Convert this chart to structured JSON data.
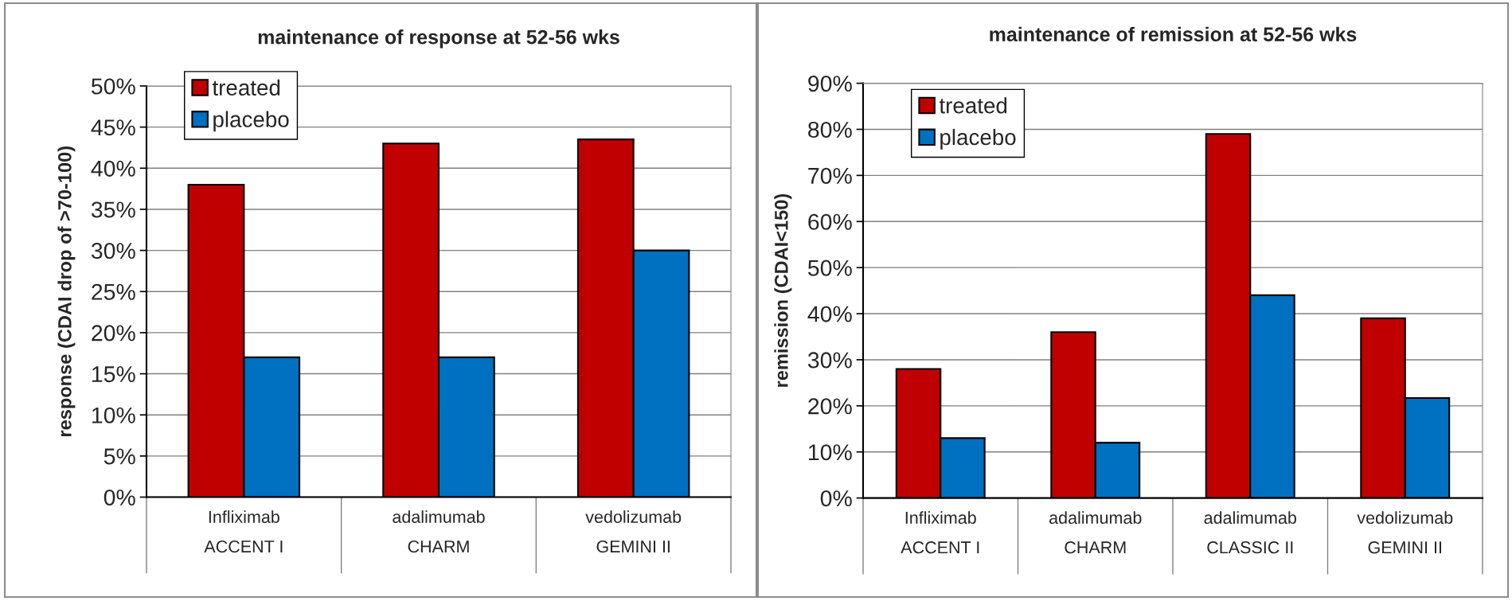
{
  "chart_data": [
    {
      "type": "bar",
      "title": "maintenance of response at 52-56 wks",
      "ylabel": "response (CDAI drop of >70-100)",
      "categories": [
        "Infliximab\nACCENT I",
        "adalimumab\nCHARM",
        "vedolizumab\nGEMINI II"
      ],
      "series": [
        {
          "name": "treated",
          "color": "#c00000",
          "values": [
            38,
            43,
            43.5
          ]
        },
        {
          "name": "placebo",
          "color": "#0070c0",
          "values": [
            17,
            17,
            30
          ]
        }
      ],
      "ylim": [
        0,
        50
      ],
      "yticks": [
        {
          "value": 0,
          "label": "0%"
        },
        {
          "value": 5,
          "label": "5%"
        },
        {
          "value": 10,
          "label": "10%"
        },
        {
          "value": 15,
          "label": "15%"
        },
        {
          "value": 20,
          "label": "20%"
        },
        {
          "value": 25,
          "label": "25%"
        },
        {
          "value": 30,
          "label": "30%"
        },
        {
          "value": 35,
          "label": "35%"
        },
        {
          "value": 40,
          "label": "40%"
        },
        {
          "value": 45,
          "label": "45%"
        },
        {
          "value": 50,
          "label": "50%"
        }
      ],
      "grid": "y",
      "legend": "top left"
    },
    {
      "type": "bar",
      "title": "maintenance of remission at 52-56 wks",
      "ylabel": "remission (CDAI<150)",
      "categories": [
        "Infliximab\nACCENT I",
        "adalimumab\nCHARM",
        "adalimumab\nCLASSIC II",
        "vedolizumab\nGEMINI II"
      ],
      "series": [
        {
          "name": "treated",
          "color": "#c00000",
          "values": [
            28,
            36,
            79,
            39
          ]
        },
        {
          "name": "placebo",
          "color": "#0070c0",
          "values": [
            13,
            12,
            44,
            21.7
          ]
        }
      ],
      "ylim": [
        0,
        90
      ],
      "yticks": [
        {
          "value": 0,
          "label": "0%"
        },
        {
          "value": 10,
          "label": "10%"
        },
        {
          "value": 20,
          "label": "20%"
        },
        {
          "value": 30,
          "label": "30%"
        },
        {
          "value": 40,
          "label": "40%"
        },
        {
          "value": 50,
          "label": "50%"
        },
        {
          "value": 60,
          "label": "60%"
        },
        {
          "value": 70,
          "label": "70%"
        },
        {
          "value": 80,
          "label": "80%"
        },
        {
          "value": 90,
          "label": "90%"
        }
      ],
      "grid": "y",
      "legend": "top left"
    }
  ]
}
